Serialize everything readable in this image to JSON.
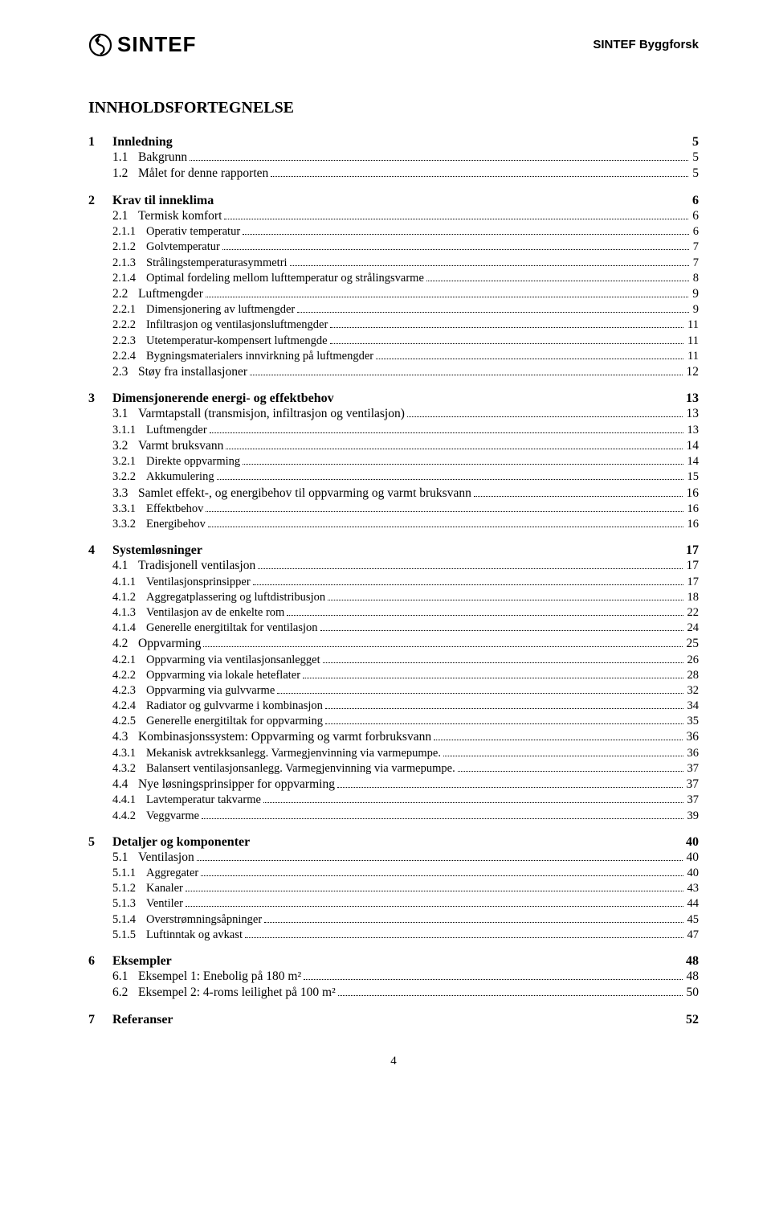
{
  "header": {
    "logo_text": "SINTEF",
    "right_text": "SINTEF Byggforsk"
  },
  "title": "INNHOLDSFORTEGNELSE",
  "footer_page": "4",
  "toc": [
    {
      "type": "chapter",
      "num": "1",
      "title": "Innledning",
      "page": "5"
    },
    {
      "type": "l2",
      "num": "1.1",
      "title": "Bakgrunn",
      "page": "5"
    },
    {
      "type": "l2",
      "num": "1.2",
      "title": "Målet for denne rapporten",
      "page": "5"
    },
    {
      "type": "chapter",
      "num": "2",
      "title": "Krav til inneklima",
      "page": "6"
    },
    {
      "type": "l2",
      "num": "2.1",
      "title": "Termisk komfort",
      "page": "6"
    },
    {
      "type": "l3",
      "num": "2.1.1",
      "title": "Operativ temperatur",
      "page": "6"
    },
    {
      "type": "l3",
      "num": "2.1.2",
      "title": "Golvtemperatur",
      "page": "7"
    },
    {
      "type": "l3",
      "num": "2.1.3",
      "title": "Strålingstemperaturasymmetri",
      "page": "7"
    },
    {
      "type": "l3",
      "num": "2.1.4",
      "title": "Optimal fordeling mellom lufttemperatur og strålingsvarme",
      "page": "8"
    },
    {
      "type": "l2",
      "num": "2.2",
      "title": "Luftmengder",
      "page": "9"
    },
    {
      "type": "l3",
      "num": "2.2.1",
      "title": "Dimensjonering av luftmengder",
      "page": "9"
    },
    {
      "type": "l3",
      "num": "2.2.2",
      "title": "Infiltrasjon og ventilasjonsluftmengder",
      "page": "11"
    },
    {
      "type": "l3",
      "num": "2.2.3",
      "title": "Utetemperatur-kompensert luftmengde",
      "page": "11"
    },
    {
      "type": "l3",
      "num": "2.2.4",
      "title": "Bygningsmaterialers innvirkning på luftmengder",
      "page": "11"
    },
    {
      "type": "l2",
      "num": "2.3",
      "title": "Støy fra installasjoner",
      "page": "12"
    },
    {
      "type": "chapter",
      "num": "3",
      "title": "Dimensjonerende energi- og effektbehov",
      "page": "13"
    },
    {
      "type": "l2",
      "num": "3.1",
      "title": "Varmtapstall (transmisjon, infiltrasjon og ventilasjon)",
      "page": "13"
    },
    {
      "type": "l3",
      "num": "3.1.1",
      "title": "Luftmengder",
      "page": "13"
    },
    {
      "type": "l2",
      "num": "3.2",
      "title": "Varmt bruksvann",
      "page": "14"
    },
    {
      "type": "l3",
      "num": "3.2.1",
      "title": "Direkte oppvarming",
      "page": "14"
    },
    {
      "type": "l3",
      "num": "3.2.2",
      "title": "Akkumulering",
      "page": "15"
    },
    {
      "type": "l2",
      "num": "3.3",
      "title": "Samlet effekt-, og energibehov til oppvarming og varmt bruksvann",
      "page": "16"
    },
    {
      "type": "l3",
      "num": "3.3.1",
      "title": "Effektbehov",
      "page": "16"
    },
    {
      "type": "l3",
      "num": "3.3.2",
      "title": "Energibehov",
      "page": "16"
    },
    {
      "type": "chapter",
      "num": "4",
      "title": "Systemløsninger",
      "page": "17"
    },
    {
      "type": "l2",
      "num": "4.1",
      "title": "Tradisjonell ventilasjon",
      "page": "17"
    },
    {
      "type": "l3",
      "num": "4.1.1",
      "title": "Ventilasjonsprinsipper",
      "page": "17"
    },
    {
      "type": "l3",
      "num": "4.1.2",
      "title": "Aggregatplassering og luftdistribusjon",
      "page": "18"
    },
    {
      "type": "l3",
      "num": "4.1.3",
      "title": "Ventilasjon av de enkelte rom",
      "page": "22"
    },
    {
      "type": "l3",
      "num": "4.1.4",
      "title": "Generelle energitiltak for ventilasjon",
      "page": "24"
    },
    {
      "type": "l2",
      "num": "4.2",
      "title": "Oppvarming",
      "page": "25"
    },
    {
      "type": "l3",
      "num": "4.2.1",
      "title": "Oppvarming via ventilasjonsanlegget",
      "page": "26"
    },
    {
      "type": "l3",
      "num": "4.2.2",
      "title": "Oppvarming via lokale heteflater",
      "page": "28"
    },
    {
      "type": "l3",
      "num": "4.2.3",
      "title": "Oppvarming via gulvvarme",
      "page": "32"
    },
    {
      "type": "l3",
      "num": "4.2.4",
      "title": "Radiator og gulvvarme i kombinasjon",
      "page": "34"
    },
    {
      "type": "l3",
      "num": "4.2.5",
      "title": "Generelle energitiltak for oppvarming",
      "page": "35"
    },
    {
      "type": "l2",
      "num": "4.3",
      "title": "Kombinasjonssystem: Oppvarming og varmt forbruksvann",
      "page": "36"
    },
    {
      "type": "l3",
      "num": "4.3.1",
      "title": "Mekanisk avtrekksanlegg. Varmegjenvinning via varmepumpe.",
      "page": "36"
    },
    {
      "type": "l3",
      "num": "4.3.2",
      "title": "Balansert ventilasjonsanlegg. Varmegjenvinning via varmepumpe.",
      "page": "37"
    },
    {
      "type": "l2",
      "num": "4.4",
      "title": "Nye løsningsprinsipper for oppvarming",
      "page": "37"
    },
    {
      "type": "l3",
      "num": "4.4.1",
      "title": "Lavtemperatur takvarme",
      "page": "37"
    },
    {
      "type": "l3",
      "num": "4.4.2",
      "title": "Veggvarme",
      "page": "39"
    },
    {
      "type": "chapter",
      "num": "5",
      "title": "Detaljer og komponenter",
      "page": "40"
    },
    {
      "type": "l2",
      "num": "5.1",
      "title": "Ventilasjon",
      "page": "40"
    },
    {
      "type": "l3",
      "num": "5.1.1",
      "title": "Aggregater",
      "page": "40"
    },
    {
      "type": "l3",
      "num": "5.1.2",
      "title": "Kanaler",
      "page": "43"
    },
    {
      "type": "l3",
      "num": "5.1.3",
      "title": "Ventiler",
      "page": "44"
    },
    {
      "type": "l3",
      "num": "5.1.4",
      "title": "Overstrømningsåpninger",
      "page": "45"
    },
    {
      "type": "l3",
      "num": "5.1.5",
      "title": "Luftinntak og avkast",
      "page": "47"
    },
    {
      "type": "chapter",
      "num": "6",
      "title": "Eksempler",
      "page": "48"
    },
    {
      "type": "l2",
      "num": "6.1",
      "title": "Eksempel 1: Enebolig på 180 m²",
      "page": "48"
    },
    {
      "type": "l2",
      "num": "6.2",
      "title": "Eksempel 2: 4-roms leilighet på 100 m²",
      "page": "50"
    },
    {
      "type": "chapter",
      "num": "7",
      "title": "Referanser",
      "page": "52"
    }
  ]
}
